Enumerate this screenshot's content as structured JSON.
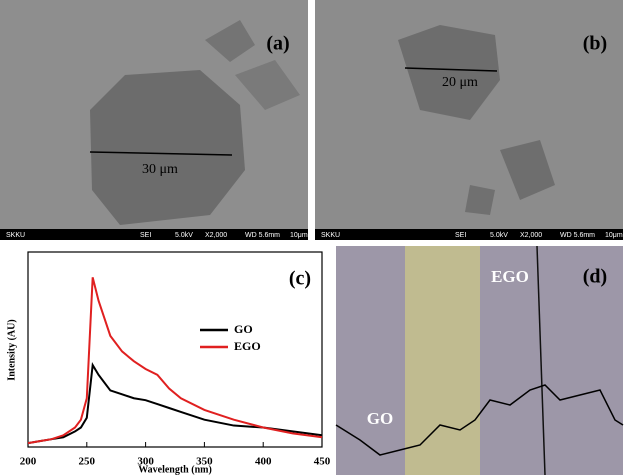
{
  "panels": {
    "a": {
      "label": "(a)",
      "scale": "30 μm",
      "footer": [
        "SKKU",
        "SEI",
        "5.0kV",
        "X2,000",
        "WD 5.6mm",
        "10μm"
      ]
    },
    "b": {
      "label": "(b)",
      "scale": "20 μm",
      "footer": [
        "SKKU",
        "SEI",
        "5.0kV",
        "X2,000",
        "WD 5.6mm",
        "10μm"
      ]
    },
    "d": {
      "label": "(d)",
      "left": "GO",
      "right": "EGO"
    }
  },
  "chart_data": {
    "type": "line",
    "label": "(c)",
    "x_label": "Wavelength (nm)",
    "y_label": "Intensity (AU)",
    "x": [
      200,
      210,
      220,
      230,
      240,
      245,
      250,
      255,
      260,
      270,
      280,
      290,
      300,
      310,
      320,
      330,
      350,
      375,
      400,
      425,
      450
    ],
    "series": [
      {
        "name": "GO",
        "color": "#000000",
        "values": [
          2,
          3,
          4,
          5,
          8,
          10,
          15,
          42,
          37,
          29,
          27,
          25,
          24,
          22,
          20,
          18,
          14,
          11,
          10,
          8,
          6
        ]
      },
      {
        "name": "EGO",
        "color": "#e02020",
        "values": [
          2,
          3,
          4,
          6,
          10,
          14,
          25,
          87,
          75,
          57,
          49,
          44,
          40,
          37,
          30,
          25,
          19,
          14,
          10,
          7,
          5
        ]
      }
    ],
    "xlim": [
      200,
      450
    ],
    "ylim": [
      0,
      100
    ],
    "xticks": [
      200,
      250,
      300,
      350,
      400,
      450
    ]
  }
}
